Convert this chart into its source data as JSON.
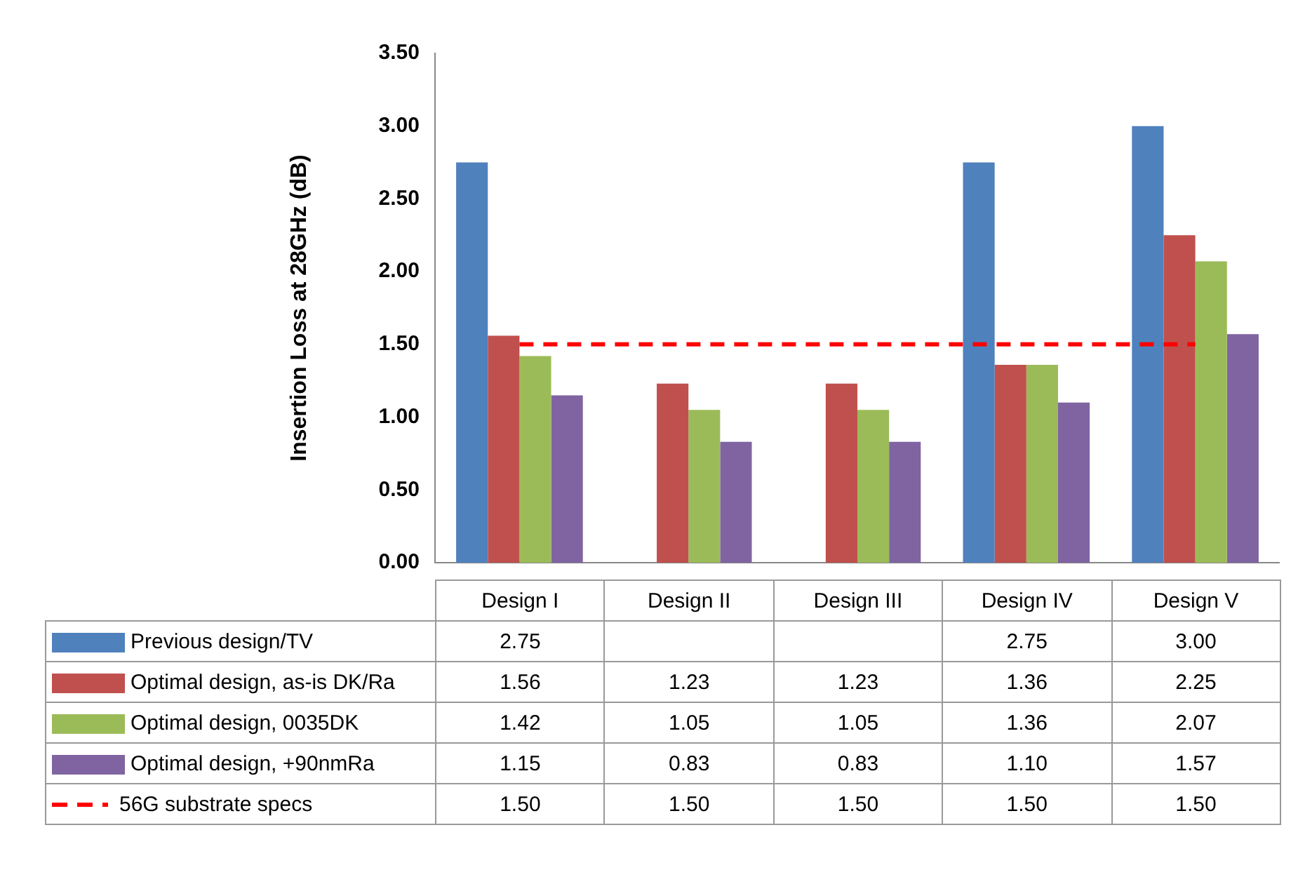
{
  "chart_data": {
    "type": "bar",
    "ylabel": "Insertion Loss at 28GHz (dB)",
    "categories": [
      "Design I",
      "Design II",
      "Design III",
      "Design IV",
      "Design V"
    ],
    "ylim": [
      0,
      3.5
    ],
    "yticks": [
      {
        "value": 0,
        "label": "0.00"
      },
      {
        "value": 0.5,
        "label": "0.50"
      },
      {
        "value": 1,
        "label": "1.00"
      },
      {
        "value": 1.5,
        "label": "1.50"
      },
      {
        "value": 2,
        "label": "2.00"
      },
      {
        "value": 2.5,
        "label": "2.50"
      },
      {
        "value": 3,
        "label": "3.00"
      },
      {
        "value": 3.5,
        "label": "3.50"
      }
    ],
    "grid": false,
    "legend": "bottom",
    "series": [
      {
        "name": "Previous design/TV",
        "color": "#4f81bd",
        "values": [
          2.75,
          null,
          null,
          2.75,
          3.0
        ],
        "value_labels": [
          "2.75",
          null,
          null,
          "2.75",
          "3.00"
        ]
      },
      {
        "name": "Optimal design, as-is DK/Ra",
        "color": "#c0504d",
        "values": [
          1.56,
          1.23,
          1.23,
          1.36,
          2.25
        ],
        "value_labels": [
          "1.56",
          "1.23",
          "1.23",
          "1.36",
          "2.25"
        ]
      },
      {
        "name": "Optimal design, 0035DK",
        "color": "#9bbb59",
        "values": [
          1.42,
          1.05,
          1.05,
          1.36,
          2.07
        ],
        "value_labels": [
          "1.42",
          "1.05",
          "1.05",
          "1.36",
          "2.07"
        ]
      },
      {
        "name": "Optimal design, +90nmRa",
        "color": "#8064a2",
        "values": [
          1.15,
          0.83,
          0.83,
          1.1,
          1.57
        ],
        "value_labels": [
          "1.15",
          "0.83",
          "0.83",
          "1.10",
          "1.57"
        ]
      },
      {
        "name": "56G substrate specs",
        "type": "line",
        "color": "#ff0000",
        "line_style": "dashed",
        "marker": "none",
        "values": [
          1.5,
          1.5,
          1.5,
          1.5,
          1.5
        ],
        "value_labels": [
          "1.50",
          "1.50",
          "1.50",
          "1.50",
          "1.50"
        ]
      }
    ]
  }
}
